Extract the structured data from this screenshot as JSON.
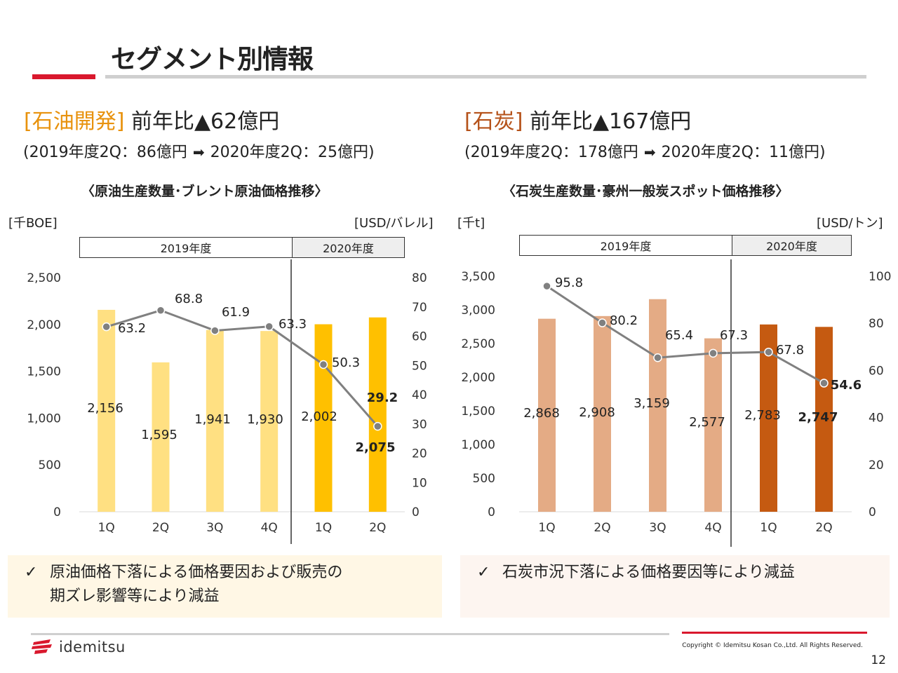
{
  "header": {
    "title": "セグメント別情報"
  },
  "oil": {
    "tag": "[石油開発]",
    "headline": "前年比▲62億円",
    "sub_before": "(2019年度2Q：86億円",
    "sub_after": "2020年度2Q：25億円)",
    "chart_title": "〈原油生産数量･ブレント原油価格推移〉",
    "unit_left": "[千BOE]",
    "unit_right": "[USD/バレル]",
    "year1": "2019年度",
    "year2": "2020年度",
    "note_line1": "原油価格下落による価格要因および販売の",
    "note_line2": "期ズレ影響等により減益"
  },
  "coal": {
    "tag": "[石炭]",
    "headline": "前年比▲167億円",
    "sub_before": "(2019年度2Q：178億円",
    "sub_after": "2020年度2Q：11億円)",
    "chart_title": "〈石炭生産数量･豪州一般炭スポット価格推移〉",
    "unit_left": "[千t]",
    "unit_right": "[USD/トン]",
    "year1": "2019年度",
    "year2": "2020年度",
    "note_line1": "石炭市況下落による価格要因等により減益"
  },
  "icons": {
    "check": "✓",
    "arrow": "➡"
  },
  "colors": {
    "accent_red": "#d9182d",
    "oil_2019": "#ffe082",
    "oil_2020": "#ffc000",
    "coal_2019": "#e4ab85",
    "coal_2020": "#c55a11",
    "line": "#808080"
  },
  "footer": {
    "logo": "idemitsu",
    "copyright": "Copyright © Idemitsu Kosan Co.,Ltd.  All Rights Reserved.",
    "page": "12"
  },
  "chart_data": [
    {
      "type": "bar",
      "categories": [
        "1Q",
        "2Q",
        "3Q",
        "4Q",
        "1Q",
        "2Q"
      ],
      "series": [
        {
          "name": "",
          "axis": "left",
          "kind": "bar",
          "values": [
            2156,
            1595,
            1941,
            1930,
            2002,
            2075
          ],
          "labels": [
            "2,156",
            "1,595",
            "1,941",
            "1,930",
            "2,002",
            "2,075"
          ]
        },
        {
          "name": "",
          "axis": "right",
          "kind": "line",
          "values": [
            63.2,
            68.8,
            61.9,
            63.3,
            50.3,
            29.2
          ],
          "labels": [
            "63.2",
            "68.8",
            "61.9",
            "63.3",
            "50.3",
            "29.2"
          ]
        }
      ],
      "ylim": [
        0,
        2500
      ],
      "yticks": [
        "0",
        "500",
        "1,000",
        "1,500",
        "2,000",
        "2,500"
      ],
      "y2lim": [
        0,
        80
      ],
      "y2ticks": [
        "0",
        "10",
        "20",
        "30",
        "40",
        "50",
        "60",
        "70",
        "80"
      ],
      "groups": [
        "2019年度",
        "2020年度"
      ],
      "ylabel": "[千BOE]",
      "y2label": "[USD/バレル]",
      "title": "〈原油生産数量･ブレント原油価格推移〉"
    },
    {
      "type": "bar",
      "categories": [
        "1Q",
        "2Q",
        "3Q",
        "4Q",
        "1Q",
        "2Q"
      ],
      "series": [
        {
          "name": "",
          "axis": "left",
          "kind": "bar",
          "values": [
            2868,
            2908,
            3159,
            2577,
            2783,
            2747
          ],
          "labels": [
            "2,868",
            "2,908",
            "3,159",
            "2,577",
            "2,783",
            "2,747"
          ]
        },
        {
          "name": "",
          "axis": "right",
          "kind": "line",
          "values": [
            95.8,
            80.2,
            65.4,
            67.3,
            67.8,
            54.6
          ],
          "labels": [
            "95.8",
            "80.2",
            "65.4",
            "67.3",
            "67.8",
            "54.6"
          ]
        }
      ],
      "ylim": [
        0,
        3500
      ],
      "yticks": [
        "0",
        "500",
        "1,000",
        "1,500",
        "2,000",
        "2,500",
        "3,000",
        "3,500"
      ],
      "y2lim": [
        0,
        100
      ],
      "y2ticks": [
        "0",
        "20",
        "40",
        "60",
        "80",
        "100"
      ],
      "groups": [
        "2019年度",
        "2020年度"
      ],
      "ylabel": "[千t]",
      "y2label": "[USD/トン]",
      "title": "〈石炭生産数量･豪州一般炭スポット価格推移〉"
    }
  ]
}
